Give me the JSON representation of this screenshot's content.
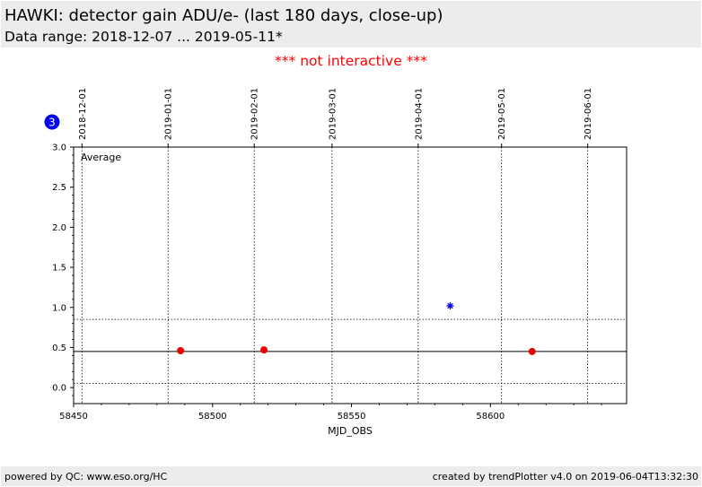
{
  "header": {
    "title": "HAWKI: detector gain ADU/e- (last 180 days, close-up)",
    "subtitle": "Data range: 2018-12-07 ... 2019-05-11*"
  },
  "notice": "*** not interactive ***",
  "badge": {
    "label": "3",
    "color": "#0000ee"
  },
  "footer": {
    "left": "powered by QC: www.eso.org/HC",
    "right": "created by trendPlotter v4.0 on 2019-06-04T13:32:30"
  },
  "chart_data": {
    "type": "scatter",
    "xlabel": "MJD_OBS",
    "ylabel": "",
    "xlim": [
      58450,
      58649
    ],
    "ylim": [
      -0.2,
      3.0
    ],
    "x_ticks": [
      58450,
      58500,
      58550,
      58600
    ],
    "x_tick_labels": [
      "58450",
      "58500",
      "58550",
      "58600"
    ],
    "y_ticks": [
      0.0,
      0.5,
      1.0,
      1.5,
      2.0,
      2.5,
      3.0
    ],
    "y_tick_labels": [
      "0.0",
      "0.5",
      "1.0",
      "1.5",
      "2.0",
      "2.5",
      "3.0"
    ],
    "top_date_ticks": [
      {
        "mjd": 58453,
        "label": "2018-12-01"
      },
      {
        "mjd": 58484,
        "label": "2019-01-01"
      },
      {
        "mjd": 58515,
        "label": "2019-02-01"
      },
      {
        "mjd": 58543,
        "label": "2019-03-01"
      },
      {
        "mjd": 58574,
        "label": "2019-04-01"
      },
      {
        "mjd": 58604,
        "label": "2019-05-01"
      },
      {
        "mjd": 58635,
        "label": "2019-06-01"
      }
    ],
    "annotation": "Average",
    "reference_lines": [
      {
        "y": 0.45,
        "style": "solid"
      },
      {
        "y": 0.85,
        "style": "dotted"
      },
      {
        "y": 0.05,
        "style": "dotted"
      }
    ],
    "series": [
      {
        "marker": "circle",
        "color": "#ee0000",
        "points": [
          [
            58488.5,
            0.46
          ],
          [
            58518.5,
            0.47
          ],
          [
            58615.0,
            0.45
          ]
        ]
      },
      {
        "marker": "asterisk",
        "color": "#0000ee",
        "points": [
          [
            58585.5,
            1.02
          ]
        ]
      }
    ],
    "grid": true
  }
}
